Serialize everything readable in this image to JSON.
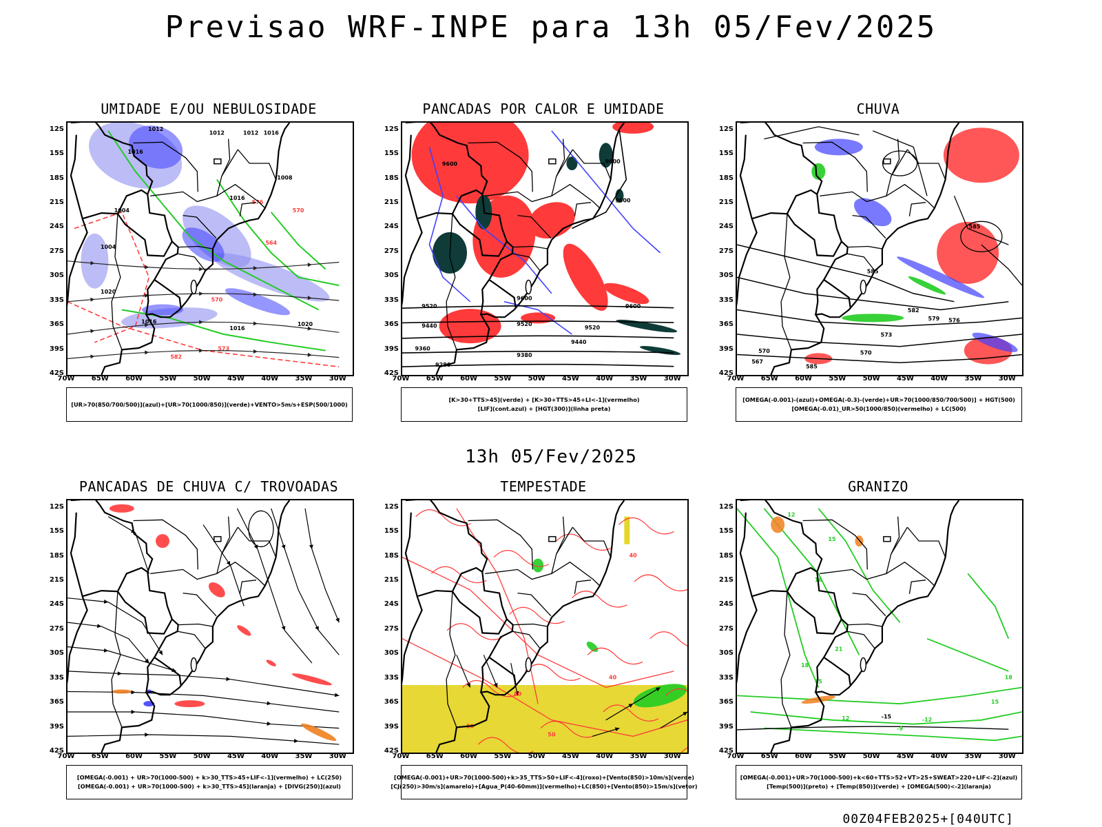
{
  "header": {
    "title": "Previsao WRF-INPE  para 13h 05/Fev/2025",
    "subtitle": "13h 05/Fev/2025",
    "footer": "00Z04FEB2025+[040UTC]"
  },
  "axes": {
    "lat_labels": [
      "12S",
      "15S",
      "18S",
      "21S",
      "24S",
      "27S",
      "30S",
      "33S",
      "36S",
      "39S",
      "42S"
    ],
    "lon_labels": [
      "70W",
      "65W",
      "60W",
      "55W",
      "50W",
      "45W",
      "40W",
      "35W",
      "30W"
    ]
  },
  "colors": {
    "blue": "#4040ff",
    "lightblue": "#9090f0",
    "green": "#22cc22",
    "red": "#ff3a3a",
    "darkteal": "#0f3c38",
    "yellow": "#e6d62a",
    "orange": "#f08020",
    "black": "#000000"
  },
  "panels": [
    {
      "id": "umidade",
      "title": "UMIDADE E/OU NEBULOSIDADE",
      "legend": [
        "[UR>70(850/700/500)](azul)+[UR>70(1000/850)](verde)+VENTO>5m/s+ESP(500/1000)"
      ],
      "contour_labels": [
        "1012",
        "1012",
        "1012",
        "1016",
        "1016",
        "1016",
        "1008",
        "1004",
        "1004",
        "1020",
        "1016",
        "1016",
        "1020",
        "576",
        "570",
        "582",
        "573",
        "570",
        "564"
      ]
    },
    {
      "id": "pancadas-calor",
      "title": "PANCADAS POR CALOR E UMIDADE",
      "legend": [
        "[K>30+TTS>45](verde) + [K>30+TTS>45+LI<-1](vermelho)",
        "[LIF](cont.azul) + [HGT(300)](linha preta)"
      ],
      "contour_labels": [
        "9600",
        "9600",
        "9600",
        "9600",
        "9520",
        "9520",
        "9520",
        "9440",
        "9440",
        "9360",
        "9380",
        "9280",
        "9600"
      ]
    },
    {
      "id": "chuva",
      "title": "CHUVA",
      "legend": [
        "[OMEGA(-0.001)-(azul)+OMEGA(-0.3)-(verde)+UR>70(1000/850/700/500)] + HGT(500)",
        "[OMEGA(-0.01)_UR>50(1000/850)(vermelho) + LC(500)"
      ],
      "contour_labels": [
        "585",
        "585",
        "582",
        "579",
        "576",
        "573",
        "570",
        "567",
        "570",
        "585"
      ]
    },
    {
      "id": "pancadas-trovoadas",
      "title": "PANCADAS DE CHUVA C/ TROVOADAS",
      "legend": [
        "[OMEGA(-0.001) + UR>70(1000-500) + k>30_TTS>45+LIF<-1](vermelho) + LC(250)",
        "[OMEGA(-0.001) + UR>70(1000-500) + k>30_TTS>45](laranja) + [DIVG(250)](azul)"
      ],
      "contour_labels": []
    },
    {
      "id": "tempestade",
      "title": "TEMPESTADE",
      "legend": [
        "[OMEGA(-0.001)+UR>70(1000-500)+k>35_TTS>50+LIF<-4](roxo)+[Vento(850)>10m/s](verde)",
        "[CJ(250)>30m/s](amarelo)+[Agua_P(40-60mm)](vermelho)+LC(850)+[Vento(850)>15m/s](vetor)"
      ],
      "contour_labels": [
        "40",
        "40",
        "50",
        "50",
        "40"
      ]
    },
    {
      "id": "granizo",
      "title": "GRANIZO",
      "legend": [
        "[OMEGA(-0.001)+UR>70(1000-500)+k<60+TTS>52+VT>25+SWEAT>220+LIF<-2](azul)",
        "[Temp(500)](preto) + [Temp(850)](verde) + [OMEGA(500)<-2](laranja)"
      ],
      "contour_labels": [
        "12",
        "15",
        "18",
        "21",
        "18",
        "15",
        "12",
        "-15",
        "-12",
        "-9",
        "15",
        "18"
      ]
    }
  ]
}
